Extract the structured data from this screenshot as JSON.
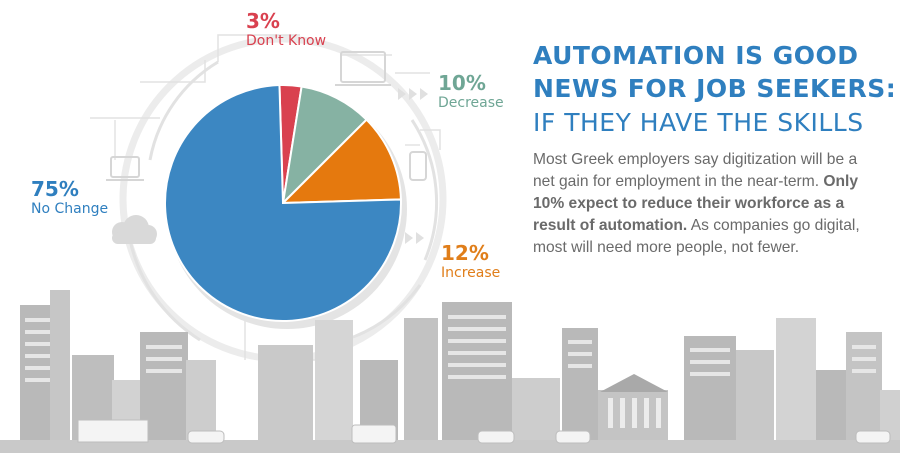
{
  "headline": {
    "line1": "AUTOMATION IS GOOD",
    "line2": "NEWS FOR JOB SEEKERS:",
    "line3": "IF THEY HAVE THE SKILLS"
  },
  "body": {
    "text_part1": "Most Greek employers say digitization will be a net gain for employment in the near-term. ",
    "text_bold": "Only 10% expect to reduce their workforce as a result of automation.",
    "text_part2": " As companies go digital, most will need more people, not fewer."
  },
  "chart_data": {
    "type": "pie",
    "slices": [
      {
        "label": "Don't Know",
        "pct_label": "3%",
        "value": 3,
        "color": "#d9414f"
      },
      {
        "label": "Decrease",
        "pct_label": "10%",
        "value": 10,
        "color": "#86b2a3"
      },
      {
        "label": "Increase",
        "pct_label": "12%",
        "value": 12,
        "color": "#e5790e"
      },
      {
        "label": "No Change",
        "pct_label": "75%",
        "value": 75,
        "color": "#3c87c2"
      }
    ]
  },
  "colors": {
    "headline": "#2f7fbf",
    "body_text": "#6a6a6a",
    "buildings": "#b9b9b9",
    "ground": "#c9c9c9"
  }
}
